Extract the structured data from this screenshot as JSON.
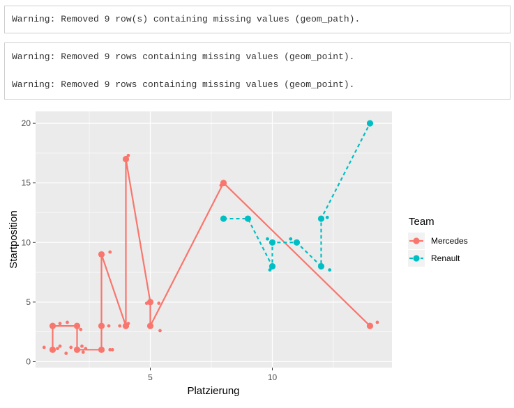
{
  "console": {
    "warning_path": "Warning: Removed 9 row(s) containing missing values (geom_path).",
    "warning_point_1": "Warning: Removed 9 rows containing missing values (geom_point).",
    "warning_point_2": "Warning: Removed 9 rows containing missing values (geom_point)."
  },
  "chart_data": {
    "type": "line",
    "xlabel": "Platzierung",
    "ylabel": "Startposition",
    "xlim": [
      0.3,
      14.9
    ],
    "ylim": [
      -0.5,
      21
    ],
    "x_ticks": [
      5,
      10
    ],
    "y_ticks": [
      0,
      5,
      10,
      15,
      20
    ],
    "grid": true,
    "legend_title": "Team",
    "legend_position": "right",
    "series": [
      {
        "name": "Mercedes",
        "color": "#F8766D",
        "line_style": "solid",
        "x": [
          1,
          1,
          2,
          2,
          3,
          3,
          3,
          4,
          4,
          5,
          5,
          8,
          14
        ],
        "y": [
          1,
          3,
          3,
          1,
          1,
          3,
          9,
          3,
          17,
          5,
          3,
          15,
          3
        ]
      },
      {
        "name": "Renault",
        "color": "#00BFC4",
        "line_style": "dashed",
        "x": [
          8,
          9,
          10,
          10,
          11,
          12,
          12,
          14
        ],
        "y": [
          12,
          12,
          8,
          10,
          10,
          8,
          12,
          20
        ]
      }
    ],
    "jitter_points": [
      {
        "series": "Mercedes",
        "x": [
          0.65,
          1.2,
          1.3,
          1.3,
          1.55,
          1.6,
          1.75,
          2.15,
          2.2,
          2.25,
          2.35,
          3.35,
          3.35,
          3.3,
          3.45,
          3.75,
          4.1,
          4.1,
          4.85,
          5.4,
          5.35,
          7.9,
          14.3
        ],
        "y": [
          1.2,
          1.1,
          3.2,
          1.3,
          0.7,
          3.3,
          1.2,
          2.7,
          1.3,
          0.8,
          1.1,
          9.2,
          1.0,
          3.0,
          1.0,
          3.0,
          17.3,
          3.2,
          4.9,
          2.6,
          4.9,
          14.8,
          3.3
        ]
      },
      {
        "series": "Renault",
        "x": [
          9.8,
          9.9,
          10.75,
          12.25,
          12.35
        ],
        "y": [
          10.3,
          7.7,
          10.3,
          12.1,
          7.7
        ]
      }
    ]
  }
}
